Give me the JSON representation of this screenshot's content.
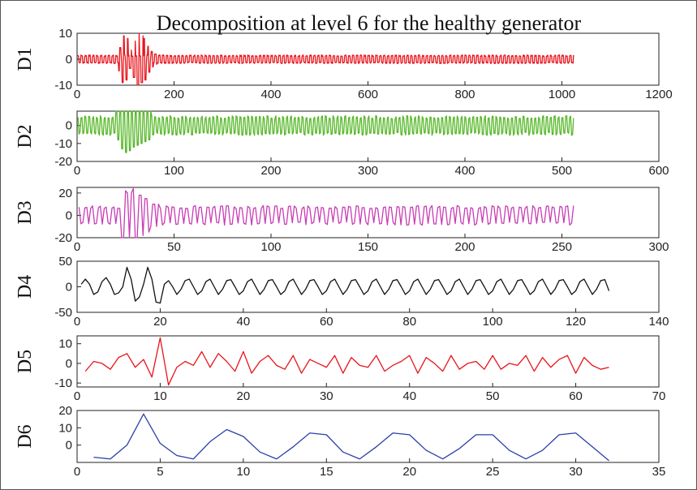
{
  "title": "Decomposition at level 6 for the healthy generator",
  "chart_data": [
    {
      "type": "line",
      "ylabel": "D1",
      "color": "#e8141c",
      "xlim": [
        0,
        1200
      ],
      "ylim": [
        -10,
        10
      ],
      "xticks": [
        0,
        200,
        400,
        600,
        800,
        1000,
        1200
      ],
      "yticks": [
        -10,
        0,
        10
      ],
      "n": 1024,
      "amp": 1.5,
      "period": 8,
      "bursts": [
        [
          88,
          4.5
        ],
        [
          95,
          9
        ],
        [
          103,
          8
        ],
        [
          110,
          3.5
        ],
        [
          118,
          7
        ],
        [
          126,
          10
        ],
        [
          134,
          9
        ],
        [
          140,
          8
        ],
        [
          148,
          5
        ],
        [
          155,
          3
        ],
        [
          162,
          2
        ]
      ],
      "series": [
        {
          "name": "",
          "description": "oscillation about 0 (approx ±1.5) with burst between x≈85 and x≈165 reaching about ±9"
        }
      ]
    },
    {
      "type": "line",
      "ylabel": "D2",
      "color": "#58b82a",
      "xlim": [
        0,
        600
      ],
      "ylim": [
        -20,
        8
      ],
      "xticks": [
        0,
        100,
        200,
        300,
        400,
        500,
        600
      ],
      "yticks": [
        -20,
        -10,
        0
      ],
      "n": 512,
      "amp": 5,
      "period": 4,
      "bursts": [
        [
          42,
          8
        ],
        [
          46,
          13
        ],
        [
          50,
          15
        ],
        [
          54,
          14
        ],
        [
          58,
          12
        ],
        [
          62,
          11
        ],
        [
          66,
          10
        ],
        [
          70,
          9
        ],
        [
          74,
          8
        ]
      ],
      "series": [
        {
          "name": "",
          "description": "oscillation about 0 (approx ±5) with dips to about -16 near x≈45–75"
        }
      ]
    },
    {
      "type": "line",
      "ylabel": "D3",
      "color": "#c83cb4",
      "xlim": [
        0,
        300
      ],
      "ylim": [
        -20,
        25
      ],
      "xticks": [
        0,
        50,
        100,
        150,
        200,
        250,
        300
      ],
      "yticks": [
        -20,
        0,
        20
      ],
      "n": 256,
      "amp": 8,
      "period": 3.5,
      "bursts": [
        [
          25,
          22
        ],
        [
          28,
          20
        ],
        [
          31,
          24
        ],
        [
          34,
          18
        ],
        [
          37,
          15
        ],
        [
          40,
          10
        ]
      ],
      "series": [
        {
          "name": "",
          "description": "oscillation about 0 (approx ±8) with burst to about ±25 near x≈25–40"
        }
      ]
    },
    {
      "type": "line",
      "ylabel": "D4",
      "color": "#111111",
      "xlim": [
        0,
        140
      ],
      "ylim": [
        -50,
        50
      ],
      "xticks": [
        0,
        20,
        40,
        60,
        80,
        100,
        120,
        140
      ],
      "yticks": [
        -50,
        0,
        50
      ],
      "x": [
        1,
        2,
        3,
        4,
        5,
        6,
        7,
        8,
        9,
        10,
        11,
        12,
        13,
        14,
        15,
        16,
        17,
        18,
        19,
        20,
        21,
        22,
        23,
        24,
        25,
        26,
        27,
        28,
        29,
        30,
        31,
        32,
        33,
        34,
        35,
        36,
        37,
        38,
        39,
        40,
        41,
        42,
        43,
        44,
        45,
        46,
        47,
        48,
        49,
        50,
        51,
        52,
        53,
        54,
        55,
        56,
        57,
        58,
        59,
        60,
        61,
        62,
        63,
        64,
        65,
        66,
        67,
        68,
        69,
        70,
        71,
        72,
        73,
        74,
        75,
        76,
        77,
        78,
        79,
        80,
        81,
        82,
        83,
        84,
        85,
        86,
        87,
        88,
        89,
        90,
        91,
        92,
        93,
        94,
        95,
        96,
        97,
        98,
        99,
        100,
        101,
        102,
        103,
        104,
        105,
        106,
        107,
        108,
        109,
        110,
        111,
        112,
        113,
        114,
        115,
        116,
        117,
        118,
        119,
        120,
        121,
        122,
        123,
        124,
        125,
        126,
        127,
        128
      ],
      "y": [
        5,
        15,
        5,
        -15,
        -10,
        10,
        18,
        5,
        -15,
        -12,
        0,
        38,
        15,
        -28,
        -20,
        5,
        38,
        15,
        -30,
        -32,
        5,
        12,
        0,
        -15,
        -5,
        12,
        15,
        0,
        -15,
        -8,
        10,
        15,
        0,
        -15,
        -5,
        12,
        14,
        0,
        -15,
        -8,
        10,
        15,
        0,
        -15,
        -5,
        12,
        14,
        0,
        -15,
        -8,
        10,
        15,
        0,
        -15,
        -5,
        12,
        14,
        0,
        -15,
        -8,
        10,
        15,
        0,
        -15,
        -5,
        12,
        14,
        0,
        -15,
        -8,
        10,
        15,
        0,
        -15,
        -5,
        12,
        14,
        0,
        -15,
        -8,
        10,
        15,
        0,
        -15,
        -5,
        12,
        14,
        0,
        -15,
        -8,
        10,
        15,
        0,
        -15,
        -5,
        12,
        14,
        0,
        -15,
        -8,
        10,
        15,
        0,
        -15,
        -5,
        12,
        14,
        0,
        -15,
        -8,
        10,
        15,
        0,
        -15,
        -5,
        12,
        14,
        0,
        -15,
        -8,
        10,
        15,
        0,
        -15,
        -5,
        12,
        14,
        -8
      ]
    },
    {
      "type": "line",
      "ylabel": "D5",
      "color": "#e8141c",
      "xlim": [
        0,
        70
      ],
      "ylim": [
        -12,
        14
      ],
      "xticks": [
        0,
        10,
        20,
        30,
        40,
        50,
        60,
        70
      ],
      "yticks": [
        -10,
        0,
        10
      ],
      "x": [
        1,
        2,
        3,
        4,
        5,
        6,
        7,
        8,
        9,
        10,
        11,
        12,
        13,
        14,
        15,
        16,
        17,
        18,
        19,
        20,
        21,
        22,
        23,
        24,
        25,
        26,
        27,
        28,
        29,
        30,
        31,
        32,
        33,
        34,
        35,
        36,
        37,
        38,
        39,
        40,
        41,
        42,
        43,
        44,
        45,
        46,
        47,
        48,
        49,
        50,
        51,
        52,
        53,
        54,
        55,
        56,
        57,
        58,
        59,
        60,
        61,
        62,
        63,
        64
      ],
      "y": [
        -4,
        1,
        0,
        -3,
        3,
        5,
        -2,
        2,
        -7,
        13,
        -11,
        -2,
        1,
        -1,
        6,
        -2,
        5,
        1,
        -4,
        6,
        -5,
        1,
        4,
        -1,
        -3,
        4,
        -5,
        2,
        0,
        -2,
        4,
        -5,
        3,
        -1,
        -2,
        4,
        -4,
        -1,
        1,
        4,
        -5,
        3,
        0,
        -4,
        4,
        -3,
        0,
        1,
        -3,
        4,
        -3,
        0,
        -1,
        4,
        -4,
        3,
        -2,
        2,
        4,
        -5,
        3,
        -1,
        -3,
        -2
      ]
    },
    {
      "type": "line",
      "ylabel": "D6",
      "color": "#2a3fa8",
      "xlim": [
        0,
        35
      ],
      "ylim": [
        -10,
        20
      ],
      "xticks": [
        0,
        5,
        10,
        15,
        20,
        25,
        30,
        35
      ],
      "yticks": [
        0,
        10,
        20
      ],
      "x": [
        1,
        2,
        3,
        4,
        5,
        6,
        7,
        8,
        9,
        10,
        11,
        12,
        13,
        14,
        15,
        16,
        17,
        18,
        19,
        20,
        21,
        22,
        23,
        24,
        25,
        26,
        27,
        28,
        29,
        30,
        31,
        32
      ],
      "y": [
        -7,
        -8,
        0,
        18,
        1,
        -6,
        -8,
        2,
        9,
        5,
        -4,
        -8,
        -1,
        7,
        6,
        -4,
        -8,
        -1,
        7,
        6,
        -3,
        -8,
        -2,
        6,
        6,
        -3,
        -8,
        -3,
        6,
        7,
        -1,
        -9
      ]
    }
  ]
}
